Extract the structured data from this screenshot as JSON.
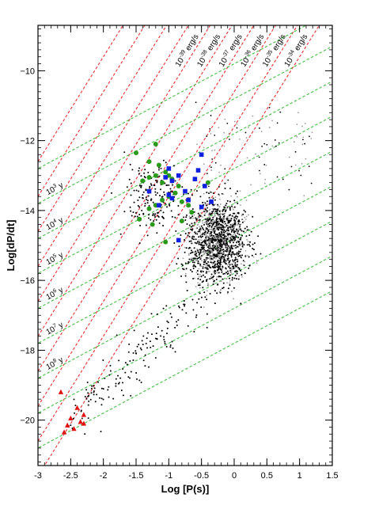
{
  "chart_data": {
    "type": "scatter",
    "xlabel": "Log [P(s)]",
    "ylabel": "Log[dP/dt]",
    "xlim": [
      -3,
      1.5
    ],
    "ylim": [
      -21.3,
      -8.7
    ],
    "x_ticks": [
      -3,
      -2.5,
      -2,
      -1.5,
      -1,
      -0.5,
      0,
      0.5,
      1,
      1.5
    ],
    "x_tick_labels": [
      "-3",
      "-2.5",
      "-2",
      "-1.5",
      "-1",
      "-0.5",
      "0",
      "0.5",
      "1",
      "1.5"
    ],
    "y_ticks": [
      -20,
      -18,
      -16,
      -14,
      -12,
      -10
    ],
    "y_tick_labels": [
      "−20",
      "−18",
      "−16",
      "−14",
      "−12",
      "−10"
    ],
    "grid": false,
    "edot_lines": [
      {
        "label_base": "10",
        "label_exp": "-39",
        "label_unit": " erg/s",
        "logEdot": 39
      },
      {
        "label_base": "10",
        "label_exp": "-38",
        "label_unit": " erg/s",
        "logEdot": 38
      },
      {
        "label_base": "10",
        "label_exp": "-37",
        "label_unit": " erg/s",
        "logEdot": 37
      },
      {
        "label_base": "10",
        "label_exp": "-36",
        "label_unit": " erg/s",
        "logEdot": 36
      },
      {
        "label_base": "10",
        "label_exp": "-35",
        "label_unit": " erg/s",
        "logEdot": 35
      },
      {
        "label_base": "10",
        "label_exp": "-34",
        "label_unit": " erg/s",
        "logEdot": 34
      }
    ],
    "extra_edot_lines": [
      40,
      41,
      42,
      43
    ],
    "age_lines": [
      {
        "label_base": "10",
        "label_exp": "3",
        "label_unit": " y",
        "logAge": 3
      },
      {
        "label_base": "10",
        "label_exp": "4",
        "label_unit": " y",
        "logAge": 4
      },
      {
        "label_base": "10",
        "label_exp": "5",
        "label_unit": " y",
        "logAge": 5
      },
      {
        "label_base": "10",
        "label_exp": "6",
        "label_unit": " y",
        "logAge": 6
      },
      {
        "label_base": "10",
        "label_exp": "7",
        "label_unit": " y",
        "logAge": 7
      },
      {
        "label_base": "10",
        "label_exp": "8",
        "label_unit": " y",
        "logAge": 8
      }
    ],
    "extra_age_lines": [
      2,
      9,
      10
    ],
    "series": [
      {
        "marker": "circle",
        "color": "#2a9a1a",
        "points": [
          [
            -1.5,
            -12.35
          ],
          [
            -1.3,
            -12.6
          ],
          [
            -1.2,
            -12.1
          ],
          [
            -1.15,
            -12.7
          ],
          [
            -1.05,
            -12.9
          ],
          [
            -1.2,
            -13.0
          ],
          [
            -1.3,
            -13.05
          ],
          [
            -1.4,
            -13.15
          ],
          [
            -1.1,
            -13.2
          ],
          [
            -1.0,
            -13.0
          ],
          [
            -0.95,
            -13.1
          ],
          [
            -0.85,
            -13.3
          ],
          [
            -0.9,
            -13.5
          ],
          [
            -1.0,
            -13.6
          ],
          [
            -1.1,
            -13.7
          ],
          [
            -1.2,
            -13.85
          ],
          [
            -1.3,
            -13.95
          ],
          [
            -1.45,
            -14.25
          ],
          [
            -1.25,
            -14.4
          ],
          [
            -1.05,
            -14.9
          ],
          [
            -0.8,
            -13.75
          ],
          [
            -0.7,
            -13.85
          ],
          [
            -0.65,
            -14.05
          ],
          [
            -0.8,
            -14.3
          ],
          [
            -0.4,
            -13.2
          ]
        ]
      },
      {
        "marker": "square",
        "color": "#1020e0",
        "points": [
          [
            -1.0,
            -12.8
          ],
          [
            -1.05,
            -13.05
          ],
          [
            -0.95,
            -13.15
          ],
          [
            -0.85,
            -13.0
          ],
          [
            -0.75,
            -13.45
          ],
          [
            -0.6,
            -13.1
          ],
          [
            -0.55,
            -12.85
          ],
          [
            -0.5,
            -12.4
          ],
          [
            -0.45,
            -13.3
          ],
          [
            -1.3,
            -13.45
          ],
          [
            -1.0,
            -13.55
          ],
          [
            -0.95,
            -13.65
          ],
          [
            -0.7,
            -13.7
          ],
          [
            -0.5,
            -13.9
          ],
          [
            -0.35,
            -13.75
          ],
          [
            -1.15,
            -13.85
          ],
          [
            -0.85,
            -14.85
          ]
        ]
      },
      {
        "marker": "triangle",
        "color": "#e01010",
        "points": [
          [
            -2.65,
            -19.2
          ],
          [
            -2.4,
            -19.65
          ],
          [
            -2.5,
            -19.95
          ],
          [
            -2.3,
            -19.85
          ],
          [
            -2.35,
            -20.05
          ],
          [
            -2.55,
            -20.15
          ],
          [
            -2.45,
            -20.25
          ],
          [
            -2.6,
            -20.35
          ],
          [
            -2.3,
            -20.1
          ]
        ]
      }
    ]
  }
}
